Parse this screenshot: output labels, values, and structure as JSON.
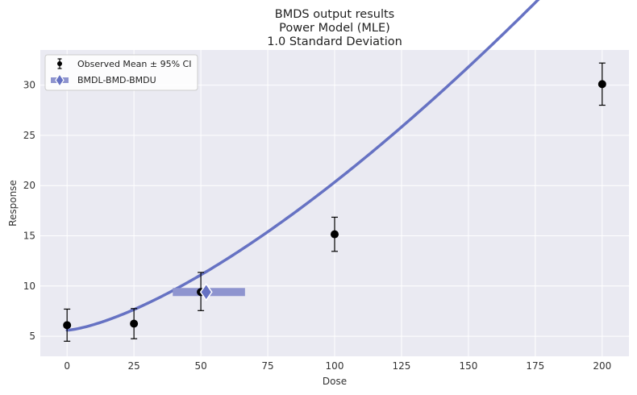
{
  "chart_data": {
    "type": "scatter",
    "title": [
      "BMDS output results",
      "Power Model (MLE)",
      "1.0 Standard Deviation"
    ],
    "xlabel": "Dose",
    "ylabel": "Response",
    "xlim": [
      -10,
      210
    ],
    "ylim": [
      3,
      33.5
    ],
    "xticks": [
      0,
      25,
      50,
      75,
      100,
      125,
      150,
      175,
      200
    ],
    "yticks": [
      5,
      10,
      15,
      20,
      25,
      30
    ],
    "grid": true,
    "legend_position": "top-left",
    "legend": [
      "Observed Mean ± 95% CI",
      "BMDL-BMD-BMDU"
    ],
    "observed": [
      {
        "dose": 0,
        "mean": 6.1,
        "lower": 4.5,
        "upper": 7.7
      },
      {
        "dose": 25,
        "mean": 6.25,
        "lower": 4.75,
        "upper": 7.75
      },
      {
        "dose": 50,
        "mean": 9.4,
        "lower": 7.55,
        "upper": 11.35
      },
      {
        "dose": 100,
        "mean": 15.15,
        "lower": 13.45,
        "upper": 16.85
      },
      {
        "dose": 200,
        "mean": 30.1,
        "lower": 28.0,
        "upper": 32.2
      }
    ],
    "model_curve": {
      "a": 5.6,
      "b": 0.0213,
      "power": 1.42
    },
    "bmd": {
      "bmdl": 39.5,
      "bmd": 52,
      "bmdu": 66.5,
      "response": 9.4
    },
    "colors": {
      "background": "#eaeaf2",
      "grid": "#ffffff",
      "model": "#6672c3",
      "bmd_bar": "#8e94cf",
      "bmd_marker": "#6672c3",
      "points": "#000000"
    }
  }
}
